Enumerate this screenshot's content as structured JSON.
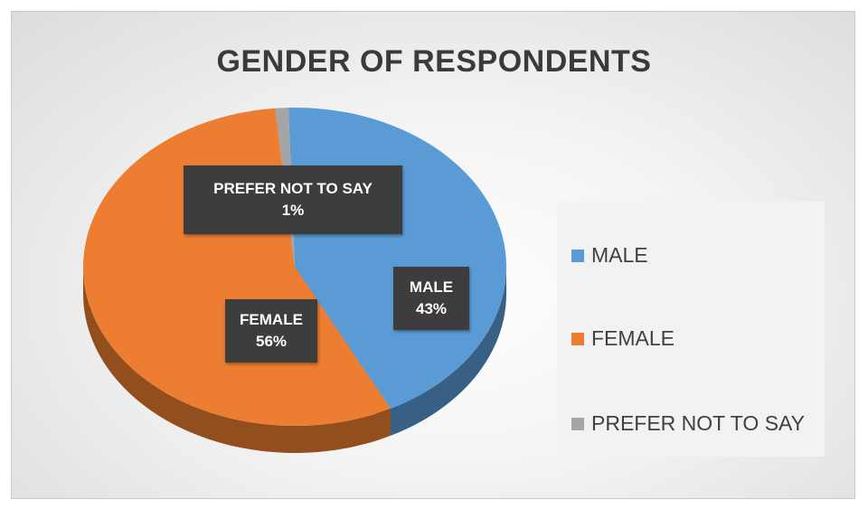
{
  "chart_data": {
    "type": "pie",
    "title": "GENDER OF RESPONDENTS",
    "categories": [
      "MALE",
      "FEMALE",
      "PREFER NOT TO SAY"
    ],
    "values": [
      43,
      56,
      1
    ],
    "unit": "%",
    "data_labels": [
      {
        "name": "MALE",
        "value": "43%"
      },
      {
        "name": "FEMALE",
        "value": "56%"
      },
      {
        "name": "PREFER NOT TO SAY",
        "value": "1%"
      }
    ],
    "colors": [
      "#5b9bd5",
      "#ed7d31",
      "#a5a5a5"
    ],
    "style": "3d",
    "legend_position": "right"
  }
}
